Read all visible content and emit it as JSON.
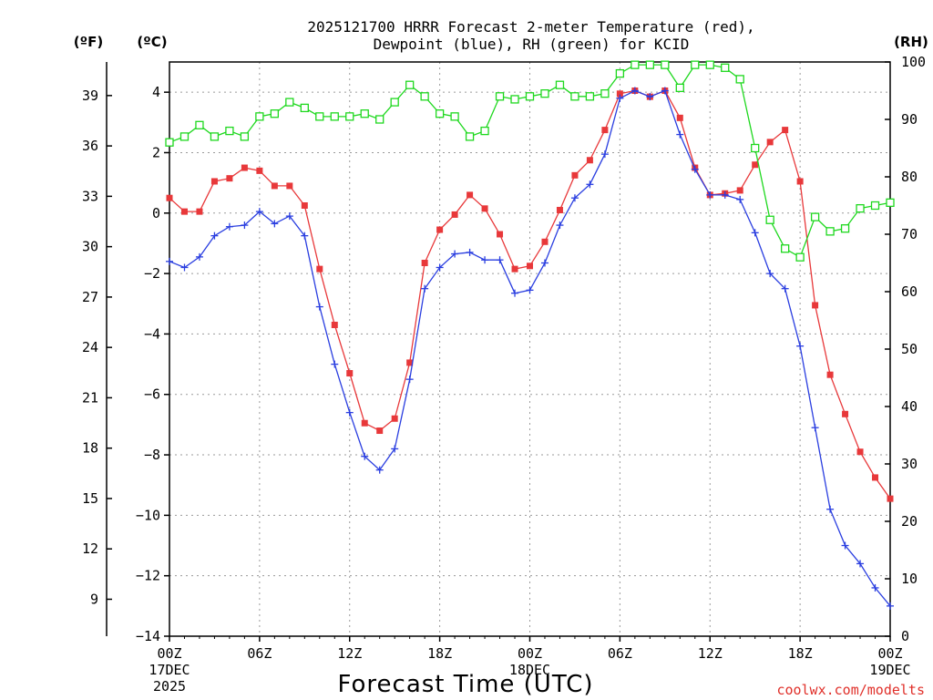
{
  "chart_data": {
    "type": "line",
    "title_line1": "2025121700 HRRR Forecast 2-meter Temperature (red),",
    "title_line2": "Dewpoint (blue), RH (green) for KCID",
    "xlabel": "Forecast Time (UTC)",
    "credit": "coolwx.com/modelts",
    "units": {
      "fahrenheit": "(ºF)",
      "celsius": "(ºC)",
      "rh": "(RH)"
    },
    "x_range_hours": [
      0,
      48
    ],
    "celsius_range": [
      -14,
      5
    ],
    "rh_range": [
      0,
      100
    ],
    "fahrenheit_ticks": [
      "39",
      "36",
      "33",
      "30",
      "27",
      "24",
      "21",
      "18",
      "15",
      "12",
      "9"
    ],
    "celsius_ticks": [
      "4",
      "2",
      "0",
      "−2",
      "−4",
      "−6",
      "−8",
      "−10",
      "−12",
      "−14"
    ],
    "rh_ticks": [
      "100",
      "90",
      "80",
      "70",
      "60",
      "50",
      "40",
      "30",
      "20",
      "10",
      "0"
    ],
    "x_ticks": [
      {
        "hour": 0,
        "label": "00Z",
        "sub1": "17DEC",
        "sub2": "2025"
      },
      {
        "hour": 6,
        "label": "06Z",
        "sub1": "",
        "sub2": ""
      },
      {
        "hour": 12,
        "label": "12Z",
        "sub1": "",
        "sub2": ""
      },
      {
        "hour": 18,
        "label": "18Z",
        "sub1": "",
        "sub2": ""
      },
      {
        "hour": 24,
        "label": "00Z",
        "sub1": "18DEC",
        "sub2": ""
      },
      {
        "hour": 30,
        "label": "06Z",
        "sub1": "",
        "sub2": ""
      },
      {
        "hour": 36,
        "label": "12Z",
        "sub1": "",
        "sub2": ""
      },
      {
        "hour": 42,
        "label": "18Z",
        "sub1": "",
        "sub2": ""
      },
      {
        "hour": 48,
        "label": "00Z",
        "sub1": "19DEC",
        "sub2": ""
      }
    ],
    "grid": true,
    "colors": {
      "temperature": "#e8383a",
      "dewpoint": "#2a3ee0",
      "rh": "#1ed81e"
    },
    "series": [
      {
        "key": "temperature",
        "marker": "square-filled",
        "values": [
          0.5,
          0.05,
          0.05,
          1.05,
          1.15,
          1.5,
          1.4,
          0.9,
          0.9,
          0.25,
          -1.85,
          -3.7,
          -5.3,
          -6.95,
          -7.2,
          -6.8,
          -4.95,
          -1.65,
          -0.55,
          -0.05,
          0.6,
          0.15,
          -0.7,
          -1.85,
          -1.75,
          -0.95,
          0.1,
          1.25,
          1.75,
          2.75,
          3.95,
          4.05,
          3.85,
          4.05,
          3.15,
          1.5,
          0.6,
          0.65,
          0.75,
          1.6,
          2.35,
          2.75,
          1.05,
          -3.05,
          -5.35,
          -6.65,
          -7.9,
          -8.75,
          -9.45
        ]
      },
      {
        "key": "dewpoint",
        "marker": "plus",
        "values": [
          -1.6,
          -1.8,
          -1.45,
          -0.75,
          -0.45,
          -0.4,
          0.05,
          -0.35,
          -0.1,
          -0.75,
          -3.1,
          -5.0,
          -6.6,
          -8.05,
          -8.5,
          -7.8,
          -5.5,
          -2.5,
          -1.8,
          -1.35,
          -1.3,
          -1.55,
          -1.55,
          -2.65,
          -2.55,
          -1.65,
          -0.4,
          0.5,
          0.95,
          1.95,
          3.8,
          4.05,
          3.85,
          4.05,
          2.6,
          1.45,
          0.6,
          0.6,
          0.45,
          -0.65,
          -2.0,
          -2.5,
          -4.4,
          -7.1,
          -9.8,
          -11.0,
          -11.6,
          -12.4,
          -13.0
        ]
      },
      {
        "key": "rh",
        "marker": "square-open",
        "values": [
          86,
          87,
          89,
          87,
          88,
          87,
          90.5,
          91,
          93,
          92,
          90.5,
          90.5,
          90.5,
          91,
          90,
          93,
          96,
          94,
          91,
          90.5,
          87,
          88,
          94,
          93.5,
          94,
          94.5,
          96,
          94,
          94,
          94.5,
          98,
          99.5,
          99.5,
          99.5,
          95.5,
          99.5,
          99.5,
          99,
          97,
          85,
          72.5,
          67.5,
          66,
          73,
          70.5,
          71,
          74.5,
          75,
          75.5
        ]
      }
    ]
  }
}
